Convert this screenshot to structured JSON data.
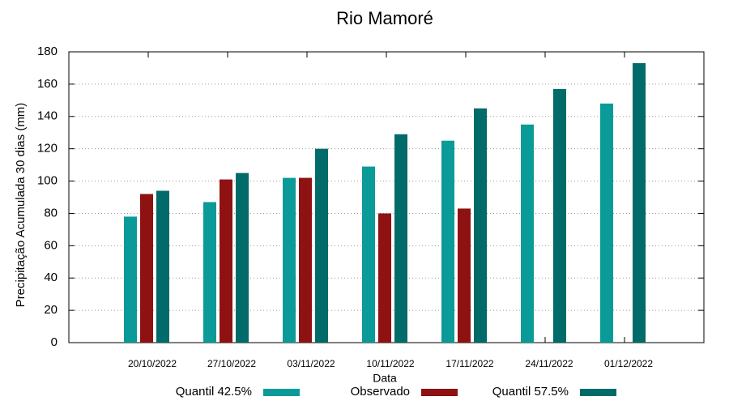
{
  "chart_data": {
    "type": "bar",
    "title": "Rio Mamoré",
    "xlabel": "Data",
    "ylabel": "Precipitação Acumulada 30 dias (mm)",
    "categories": [
      "20/10/2022",
      "27/10/2022",
      "03/11/2022",
      "10/11/2022",
      "17/11/2022",
      "24/11/2022",
      "01/12/2022"
    ],
    "series": [
      {
        "name": "Quantil 42.5%",
        "color": "#0a9a98",
        "values": [
          78,
          87,
          102,
          109,
          125,
          135,
          148
        ]
      },
      {
        "name": "Observado",
        "color": "#8e1212",
        "values": [
          92,
          101,
          102,
          80,
          83,
          null,
          null
        ]
      },
      {
        "name": "Quantil 57.5%",
        "color": "#006b68",
        "values": [
          94,
          105,
          120,
          129,
          145,
          157,
          173
        ]
      }
    ],
    "ylim": [
      0,
      180
    ],
    "yticks": [
      0,
      20,
      40,
      60,
      80,
      100,
      120,
      140,
      160,
      180
    ],
    "grid": true
  }
}
